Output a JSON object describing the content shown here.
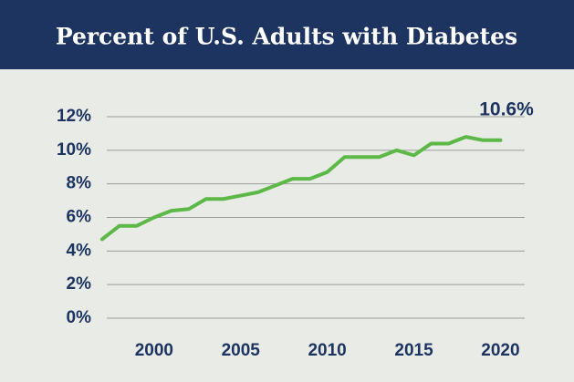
{
  "chart_data": {
    "type": "line",
    "title": "Percent of U.S. Adults with Diabetes",
    "x": [
      1997,
      1998,
      1999,
      2000,
      2001,
      2002,
      2003,
      2004,
      2005,
      2006,
      2007,
      2008,
      2009,
      2010,
      2011,
      2012,
      2013,
      2014,
      2015,
      2016,
      2017,
      2018,
      2019,
      2020
    ],
    "series": [
      {
        "name": "Percent of U.S. Adults with Diabetes",
        "color": "#5cb947",
        "values": [
          4.7,
          5.5,
          5.5,
          6.0,
          6.4,
          6.5,
          7.1,
          7.1,
          7.3,
          7.5,
          7.9,
          8.3,
          8.3,
          8.7,
          9.6,
          9.6,
          9.6,
          10.0,
          9.7,
          10.4,
          10.4,
          10.8,
          10.6,
          10.6
        ]
      }
    ],
    "annotation": "10.6%",
    "xlim": [
      1996.9,
      2021.4
    ],
    "xticks": [
      2000,
      2005,
      2010,
      2015,
      2020
    ],
    "ylim": [
      0,
      12
    ],
    "yticks": [
      {
        "value": 0,
        "label": "0%"
      },
      {
        "value": 2,
        "label": "2%"
      },
      {
        "value": 4,
        "label": "4%"
      },
      {
        "value": 6,
        "label": "6%"
      },
      {
        "value": 8,
        "label": "8%"
      },
      {
        "value": 10,
        "label": "10%"
      },
      {
        "value": 12,
        "label": "12%"
      }
    ],
    "grid": true
  }
}
